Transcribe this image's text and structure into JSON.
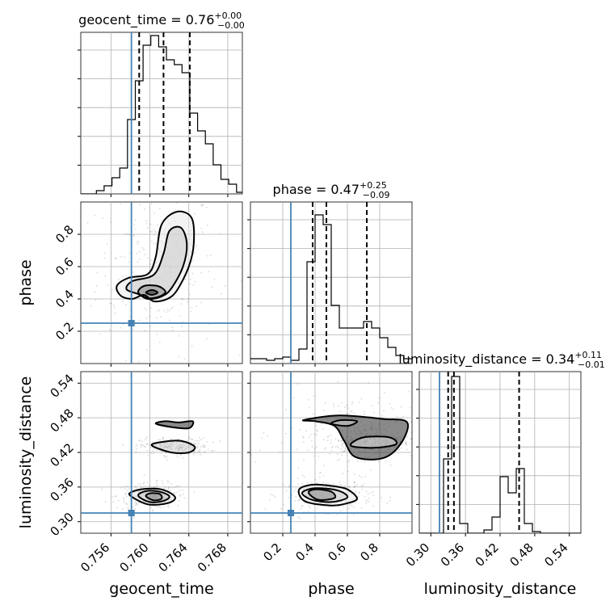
{
  "chart_data": {
    "type": "corner",
    "parameters": [
      "geocent_time",
      "phase",
      "luminosity_distance"
    ],
    "ranges": {
      "geocent_time": [
        0.7529,
        0.7695
      ],
      "phase": [
        0.0,
        1.0
      ],
      "luminosity_distance": [
        0.28,
        0.56
      ]
    },
    "ticks": {
      "geocent_time": [
        0.756,
        0.76,
        0.764,
        0.768
      ],
      "phase": [
        0.2,
        0.4,
        0.6,
        0.8
      ],
      "luminosity_distance": [
        0.3,
        0.36,
        0.42,
        0.48,
        0.54
      ]
    },
    "tick_labels": {
      "geocent_time": [
        "0.756",
        "0.760",
        "0.764",
        "0.768"
      ],
      "phase": [
        "0.2",
        "0.4",
        "0.6",
        "0.8"
      ],
      "luminosity_distance": [
        "0.30",
        "0.36",
        "0.42",
        "0.48",
        "0.54"
      ]
    },
    "truths": {
      "geocent_time": 0.7581,
      "phase": 0.25,
      "luminosity_distance": 0.315
    },
    "titles": [
      {
        "name": "geocent_time",
        "value": "0.76",
        "plus": "+0.00",
        "minus": "−0.00"
      },
      {
        "name": "phase",
        "value": "0.47",
        "plus": "+0.25",
        "minus": "−0.09"
      },
      {
        "name": "luminosity_distance",
        "value": "0.34",
        "plus": "+0.11",
        "minus": "−0.01"
      }
    ],
    "quantiles": {
      "geocent_time": [
        0.7589,
        0.7614,
        0.7641
      ],
      "phase": [
        0.385,
        0.47,
        0.72
      ],
      "luminosity_distance": [
        0.33,
        0.34,
        0.453
      ]
    },
    "histograms": {
      "geocent_time": {
        "edges": [
          0.7529,
          0.7537,
          0.7545,
          0.7553,
          0.7561,
          0.7569,
          0.7577,
          0.7585,
          0.7593,
          0.7601,
          0.7609,
          0.7617,
          0.7625,
          0.7633,
          0.7641,
          0.7649,
          0.7657,
          0.7665,
          0.7673,
          0.7681,
          0.7689,
          0.7697
        ],
        "counts": [
          0.0,
          0.0,
          0.02,
          0.05,
          0.1,
          0.16,
          0.46,
          0.7,
          0.92,
          0.98,
          0.91,
          0.83,
          0.8,
          0.75,
          0.5,
          0.39,
          0.31,
          0.18,
          0.09,
          0.06,
          0.01
        ]
      },
      "phase": {
        "edges": [
          0.0,
          0.05,
          0.1,
          0.15,
          0.2,
          0.25,
          0.3,
          0.35,
          0.4,
          0.45,
          0.5,
          0.55,
          0.6,
          0.65,
          0.7,
          0.75,
          0.8,
          0.85,
          0.9,
          0.95,
          1.0
        ],
        "counts": [
          0.03,
          0.03,
          0.02,
          0.03,
          0.04,
          0.02,
          0.09,
          0.63,
          0.92,
          0.86,
          0.36,
          0.22,
          0.22,
          0.22,
          0.26,
          0.22,
          0.16,
          0.1,
          0.05,
          0.03
        ]
      },
      "luminosity_distance": {
        "edges": [
          0.28,
          0.294,
          0.308,
          0.322,
          0.336,
          0.35,
          0.364,
          0.378,
          0.392,
          0.406,
          0.42,
          0.434,
          0.448,
          0.462,
          0.476,
          0.49,
          0.504,
          0.518,
          0.532,
          0.546,
          0.56
        ],
        "counts": [
          0.0,
          0.0,
          0.0,
          0.46,
          0.97,
          0.06,
          0.0,
          0.0,
          0.02,
          0.1,
          0.35,
          0.25,
          0.4,
          0.06,
          0.01,
          0.0,
          0.0,
          0.0,
          0.0,
          0.0
        ]
      }
    },
    "contours_2d": [
      {
        "x": "geocent_time",
        "y": "phase",
        "levels": [
          {
            "points": [
              [
                0.7594,
                0.425
              ],
              [
                0.7604,
                0.385
              ],
              [
                0.7618,
                0.4
              ],
              [
                0.7628,
                0.455
              ],
              [
                0.764,
                0.6
              ],
              [
                0.7645,
                0.74
              ],
              [
                0.7643,
                0.9
              ],
              [
                0.7628,
                0.94
              ],
              [
                0.7612,
                0.86
              ],
              [
                0.7606,
                0.66
              ],
              [
                0.7598,
                0.555
              ],
              [
                0.7578,
                0.53
              ],
              [
                0.7566,
                0.48
              ],
              [
                0.757,
                0.42
              ],
              [
                0.7582,
                0.4
              ]
            ]
          },
          {
            "points": [
              [
                0.7588,
                0.43
              ],
              [
                0.7598,
                0.4
              ],
              [
                0.7612,
                0.415
              ],
              [
                0.7622,
                0.465
              ],
              [
                0.7634,
                0.6
              ],
              [
                0.7638,
                0.74
              ],
              [
                0.7632,
                0.84
              ],
              [
                0.762,
                0.82
              ],
              [
                0.7614,
                0.68
              ],
              [
                0.7604,
                0.55
              ],
              [
                0.7582,
                0.51
              ],
              [
                0.7576,
                0.46
              ]
            ]
          },
          {
            "points": [
              [
                0.7588,
                0.44
              ],
              [
                0.7598,
                0.405
              ],
              [
                0.761,
                0.415
              ],
              [
                0.7616,
                0.445
              ],
              [
                0.7608,
                0.48
              ],
              [
                0.7594,
                0.48
              ]
            ]
          },
          {
            "points": [
              [
                0.7596,
                0.44
              ],
              [
                0.7602,
                0.425
              ],
              [
                0.7608,
                0.44
              ],
              [
                0.7602,
                0.455
              ]
            ]
          }
        ]
      },
      {
        "x": "geocent_time",
        "y": "luminosity_distance",
        "levels": [
          {
            "points": [
              [
                0.758,
                0.345
              ],
              [
                0.7598,
                0.33
              ],
              [
                0.7618,
                0.332
              ],
              [
                0.7626,
                0.342
              ],
              [
                0.7614,
                0.355
              ],
              [
                0.7596,
                0.357
              ],
              [
                0.7582,
                0.352
              ]
            ]
          },
          {
            "points": [
              [
                0.7588,
                0.345
              ],
              [
                0.76,
                0.334
              ],
              [
                0.7614,
                0.336
              ],
              [
                0.762,
                0.344
              ],
              [
                0.761,
                0.352
              ],
              [
                0.7596,
                0.353
              ]
            ]
          },
          {
            "points": [
              [
                0.7596,
                0.344
              ],
              [
                0.7604,
                0.337
              ],
              [
                0.7612,
                0.34
              ],
              [
                0.761,
                0.348
              ],
              [
                0.76,
                0.349
              ]
            ]
          },
          {
            "points": [
              [
                0.7606,
                0.47
              ],
              [
                0.7622,
                0.464
              ],
              [
                0.764,
                0.462
              ],
              [
                0.7644,
                0.474
              ],
              [
                0.763,
                0.472
              ],
              [
                0.7616,
                0.474
              ]
            ]
          },
          {
            "points": [
              [
                0.7602,
                0.432
              ],
              [
                0.7622,
                0.42
              ],
              [
                0.764,
                0.42
              ],
              [
                0.7646,
                0.43
              ],
              [
                0.7632,
                0.44
              ],
              [
                0.7612,
                0.438
              ]
            ]
          }
        ]
      },
      {
        "x": "phase",
        "y": "luminosity_distance",
        "levels": [
          {
            "points": [
              [
                0.3,
                0.355
              ],
              [
                0.34,
                0.335
              ],
              [
                0.5,
                0.328
              ],
              [
                0.6,
                0.332
              ],
              [
                0.66,
                0.34
              ],
              [
                0.6,
                0.356
              ],
              [
                0.5,
                0.362
              ],
              [
                0.38,
                0.364
              ]
            ]
          },
          {
            "points": [
              [
                0.32,
                0.35
              ],
              [
                0.38,
                0.338
              ],
              [
                0.5,
                0.334
              ],
              [
                0.6,
                0.342
              ],
              [
                0.54,
                0.354
              ],
              [
                0.4,
                0.358
              ]
            ]
          },
          {
            "points": [
              [
                0.36,
                0.35
              ],
              [
                0.42,
                0.338
              ],
              [
                0.52,
                0.341
              ],
              [
                0.5,
                0.352
              ],
              [
                0.4,
                0.356
              ]
            ]
          },
          {
            "points": [
              [
                0.33,
                0.476
              ],
              [
                0.55,
                0.484
              ],
              [
                0.82,
                0.478
              ],
              [
                0.97,
                0.472
              ],
              [
                0.93,
                0.435
              ],
              [
                0.82,
                0.41
              ],
              [
                0.65,
                0.412
              ],
              [
                0.58,
                0.44
              ],
              [
                0.52,
                0.466
              ],
              [
                0.4,
                0.474
              ]
            ]
          },
          {
            "points": [
              [
                0.5,
                0.47
              ],
              [
                0.56,
                0.476
              ],
              [
                0.66,
                0.474
              ],
              [
                0.6,
                0.466
              ]
            ]
          },
          {
            "points": [
              [
                0.62,
                0.432
              ],
              [
                0.76,
                0.428
              ],
              [
                0.9,
                0.434
              ],
              [
                0.86,
                0.446
              ],
              [
                0.7,
                0.446
              ]
            ]
          }
        ]
      }
    ]
  }
}
